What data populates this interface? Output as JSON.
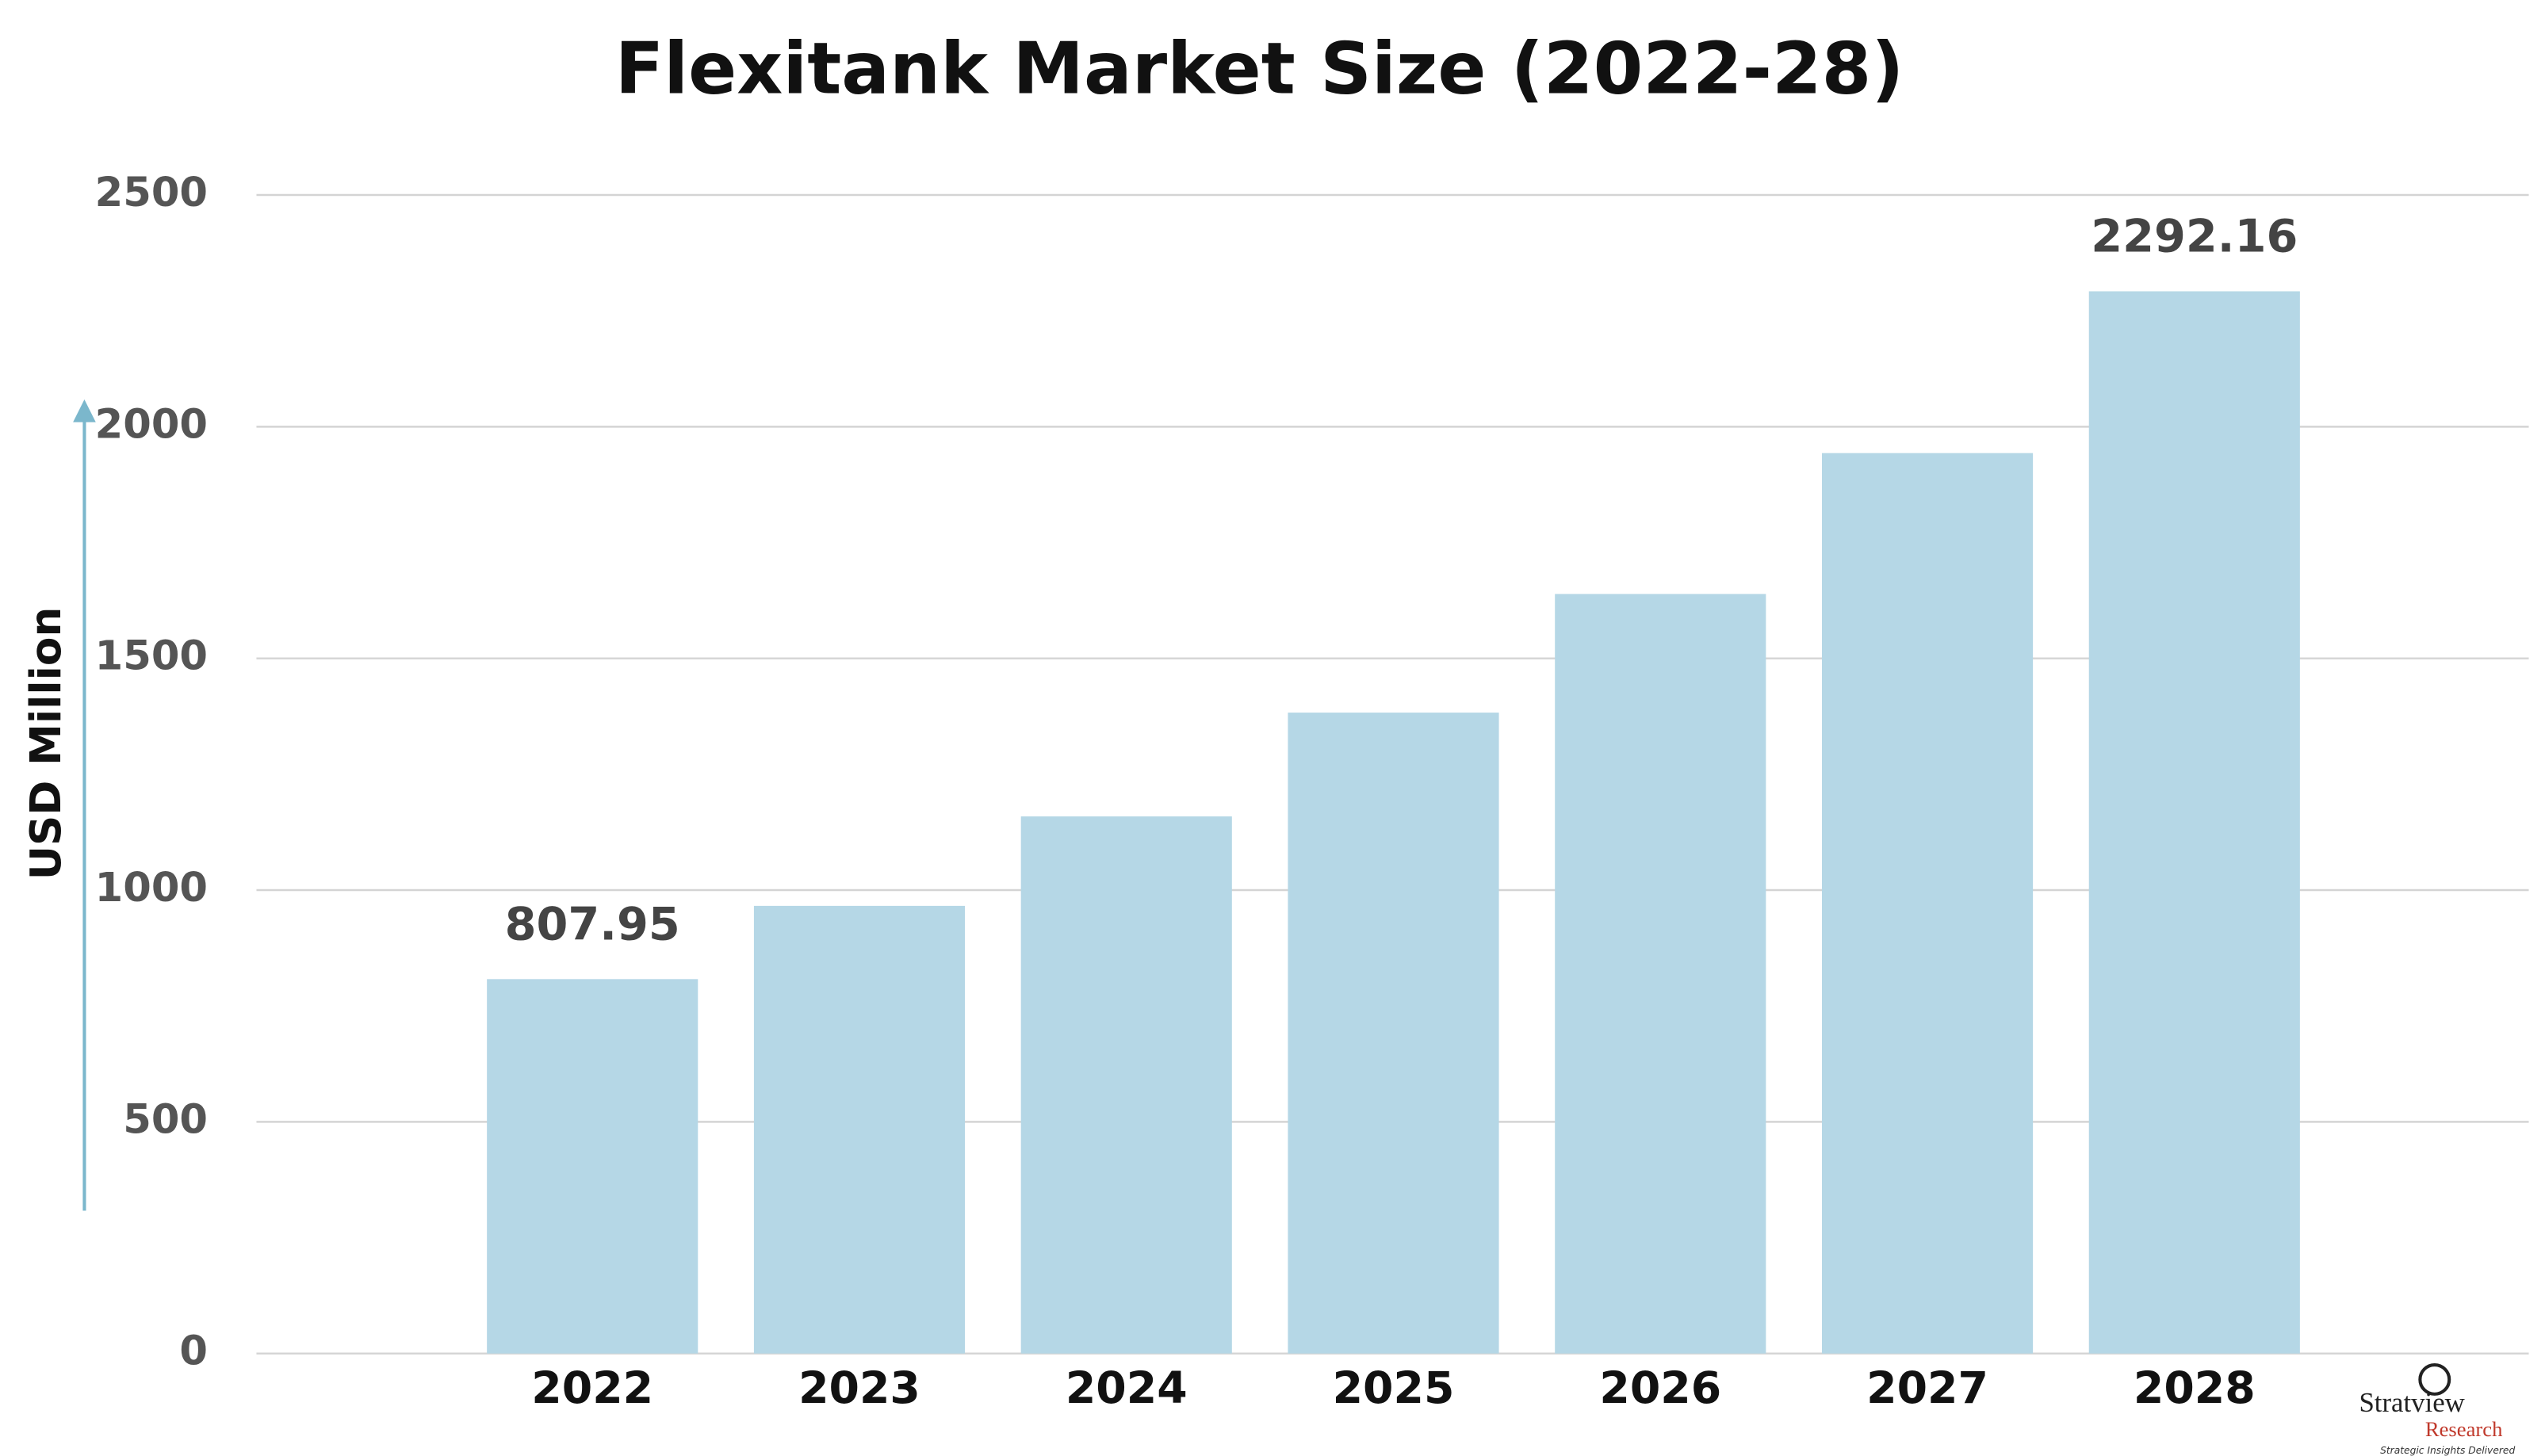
{
  "chart_data": {
    "type": "bar",
    "title": "Flexitank Market Size (2022-28)",
    "y_label": "USD Million",
    "categories": [
      "2022",
      "2023",
      "2024",
      "2025",
      "2026",
      "2027",
      "2028"
    ],
    "values": [
      807.95,
      966,
      1159,
      1383,
      1639,
      1943,
      2292.16
    ],
    "value_labels": [
      "807.95",
      null,
      null,
      null,
      null,
      null,
      "2292.16"
    ],
    "color": "#b5d7e6",
    "ylim": [
      0,
      2500
    ],
    "yticks": [
      0,
      500,
      1000,
      1500,
      2000,
      2500
    ],
    "grid": true,
    "logo": {
      "name": "Stratview",
      "sub": "Research",
      "tagline": "Strategic Insights Delivered"
    }
  }
}
